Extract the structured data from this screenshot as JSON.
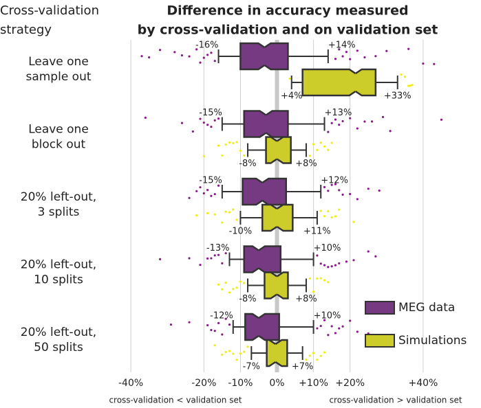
{
  "chart_data": {
    "type": "boxplot",
    "title": [
      "Difference in accuracy measured",
      "by cross-validation and on validation set"
    ],
    "y_header": [
      "Cross-validation",
      "strategy"
    ],
    "categories": [
      [
        "Leave one",
        "sample out"
      ],
      [
        "Leave one",
        "block out"
      ],
      [
        "20% left-out,",
        "3 splits"
      ],
      [
        "20% left-out,",
        "10 splits"
      ],
      [
        "20% left-out,",
        "50 splits"
      ]
    ],
    "x_annotations": [
      "cross-validation < validation set",
      "cross-validation > validation set"
    ],
    "xlim": [
      -50,
      50
    ],
    "xticks": [
      {
        "value": -40,
        "label": "-40%"
      },
      {
        "value": -20,
        "label": "-20%"
      },
      {
        "value": -10,
        "label": "-10%"
      },
      {
        "value": 0,
        "label": "0%"
      },
      {
        "value": 10,
        "label": "+10%"
      },
      {
        "value": 20,
        "label": "+20%"
      },
      {
        "value": 40,
        "label": "+40%"
      }
    ],
    "grid": true,
    "legend": "lower right",
    "series": [
      {
        "name": "MEG data",
        "color": "#763a82",
        "point_color": "#8a1a8a",
        "boxes": [
          {
            "whislo": -16,
            "q1": -10,
            "med": -3.4,
            "q3": 3,
            "whishi": 14,
            "labels": {
              "whislo": "-16%",
              "whishi": "+14%"
            },
            "points": [
              -37,
              -35,
              -32,
              -28,
              -26,
              -24,
              -22,
              -21,
              -20,
              -19,
              -18,
              -17,
              16,
              17,
              18,
              19,
              20,
              22,
              24,
              27,
              30,
              36,
              40,
              43
            ]
          },
          {
            "whislo": -15,
            "q1": -9,
            "med": -3,
            "q3": 3,
            "whishi": 13,
            "labels": {
              "whislo": "-15%",
              "whishi": "+13%"
            },
            "points": [
              -36,
              -26,
              -23,
              -21,
              -20,
              -19,
              -18,
              -17,
              -16,
              14,
              15,
              16,
              17,
              18,
              20,
              22,
              24,
              26,
              29,
              31,
              45
            ]
          },
          {
            "whislo": -15,
            "q1": -9.4,
            "med": -4,
            "q3": 2.5,
            "whishi": 12,
            "labels": {
              "whislo": "-15%",
              "whishi": "+12%"
            },
            "points": [
              -24,
              -22,
              -21,
              -20,
              -19,
              -18,
              -17,
              -16,
              13,
              14,
              15,
              16,
              17,
              18,
              20,
              22,
              25,
              28
            ]
          },
          {
            "whislo": -13,
            "q1": -9,
            "med": -5,
            "q3": 1,
            "whishi": 10,
            "labels": {
              "whislo": "-13%",
              "whishi": "+10%"
            },
            "points": [
              -32,
              -24,
              -21,
              -19,
              -18,
              -17,
              -16,
              -15,
              -14,
              11,
              12,
              13,
              14,
              15,
              16,
              17,
              19,
              21,
              25,
              27
            ]
          },
          {
            "whislo": -12,
            "q1": -8.7,
            "med": -5,
            "q3": 0.6,
            "whishi": 10,
            "labels": {
              "whislo": "-12%",
              "whishi": "+10%"
            },
            "points": [
              -29,
              -24,
              -19,
              -18,
              -17,
              -16,
              -15,
              -14,
              -13,
              11,
              12,
              13,
              14,
              15,
              16,
              17,
              18,
              20,
              22,
              25
            ]
          }
        ]
      },
      {
        "name": "Simulations",
        "color": "#cccc2a",
        "point_color": "#eeee10",
        "boxes": [
          {
            "whislo": 4,
            "q1": 7,
            "med": 21.5,
            "q3": 27,
            "whishi": 33,
            "labels": {
              "whislo": "+4%",
              "whishi": "+33%"
            },
            "points": [
              3.5,
              34,
              35,
              36,
              36.5,
              37
            ]
          },
          {
            "whislo": -8,
            "q1": -3,
            "med": 0,
            "q3": 3.8,
            "whishi": 8,
            "labels": {
              "whislo": "-8%",
              "whishi": "+8%"
            },
            "points": [
              -20,
              -16,
              -15,
              -14,
              -13,
              -12,
              -11,
              -10,
              -9,
              9,
              10,
              11,
              12,
              13,
              14,
              15
            ]
          },
          {
            "whislo": -10,
            "q1": -4,
            "med": 0,
            "q3": 4.3,
            "whishi": 11,
            "labels": {
              "whislo": "-10%",
              "whishi": "+11%"
            },
            "points": [
              -22,
              -19,
              -17,
              -15,
              -14,
              -13,
              -12,
              -11,
              12,
              13,
              14,
              15,
              16,
              17,
              21
            ]
          },
          {
            "whislo": -8,
            "q1": -3.4,
            "med": 0,
            "q3": 3,
            "whishi": 8,
            "labels": {
              "whislo": "-8%",
              "whishi": "+8%"
            },
            "points": [
              -16,
              -15,
              -14,
              -13,
              -12,
              -11,
              -10,
              -9,
              9,
              10,
              11,
              12,
              13,
              14
            ]
          },
          {
            "whislo": -7,
            "q1": -2.8,
            "med": -0.4,
            "q3": 2.8,
            "whishi": 7,
            "labels": {
              "whislo": "-7%",
              "whishi": "+7%"
            },
            "points": [
              -17,
              -15,
              -14,
              -13,
              -12,
              -11,
              -10,
              -9,
              -8,
              8,
              9,
              10,
              11,
              12,
              13
            ]
          }
        ]
      }
    ]
  }
}
